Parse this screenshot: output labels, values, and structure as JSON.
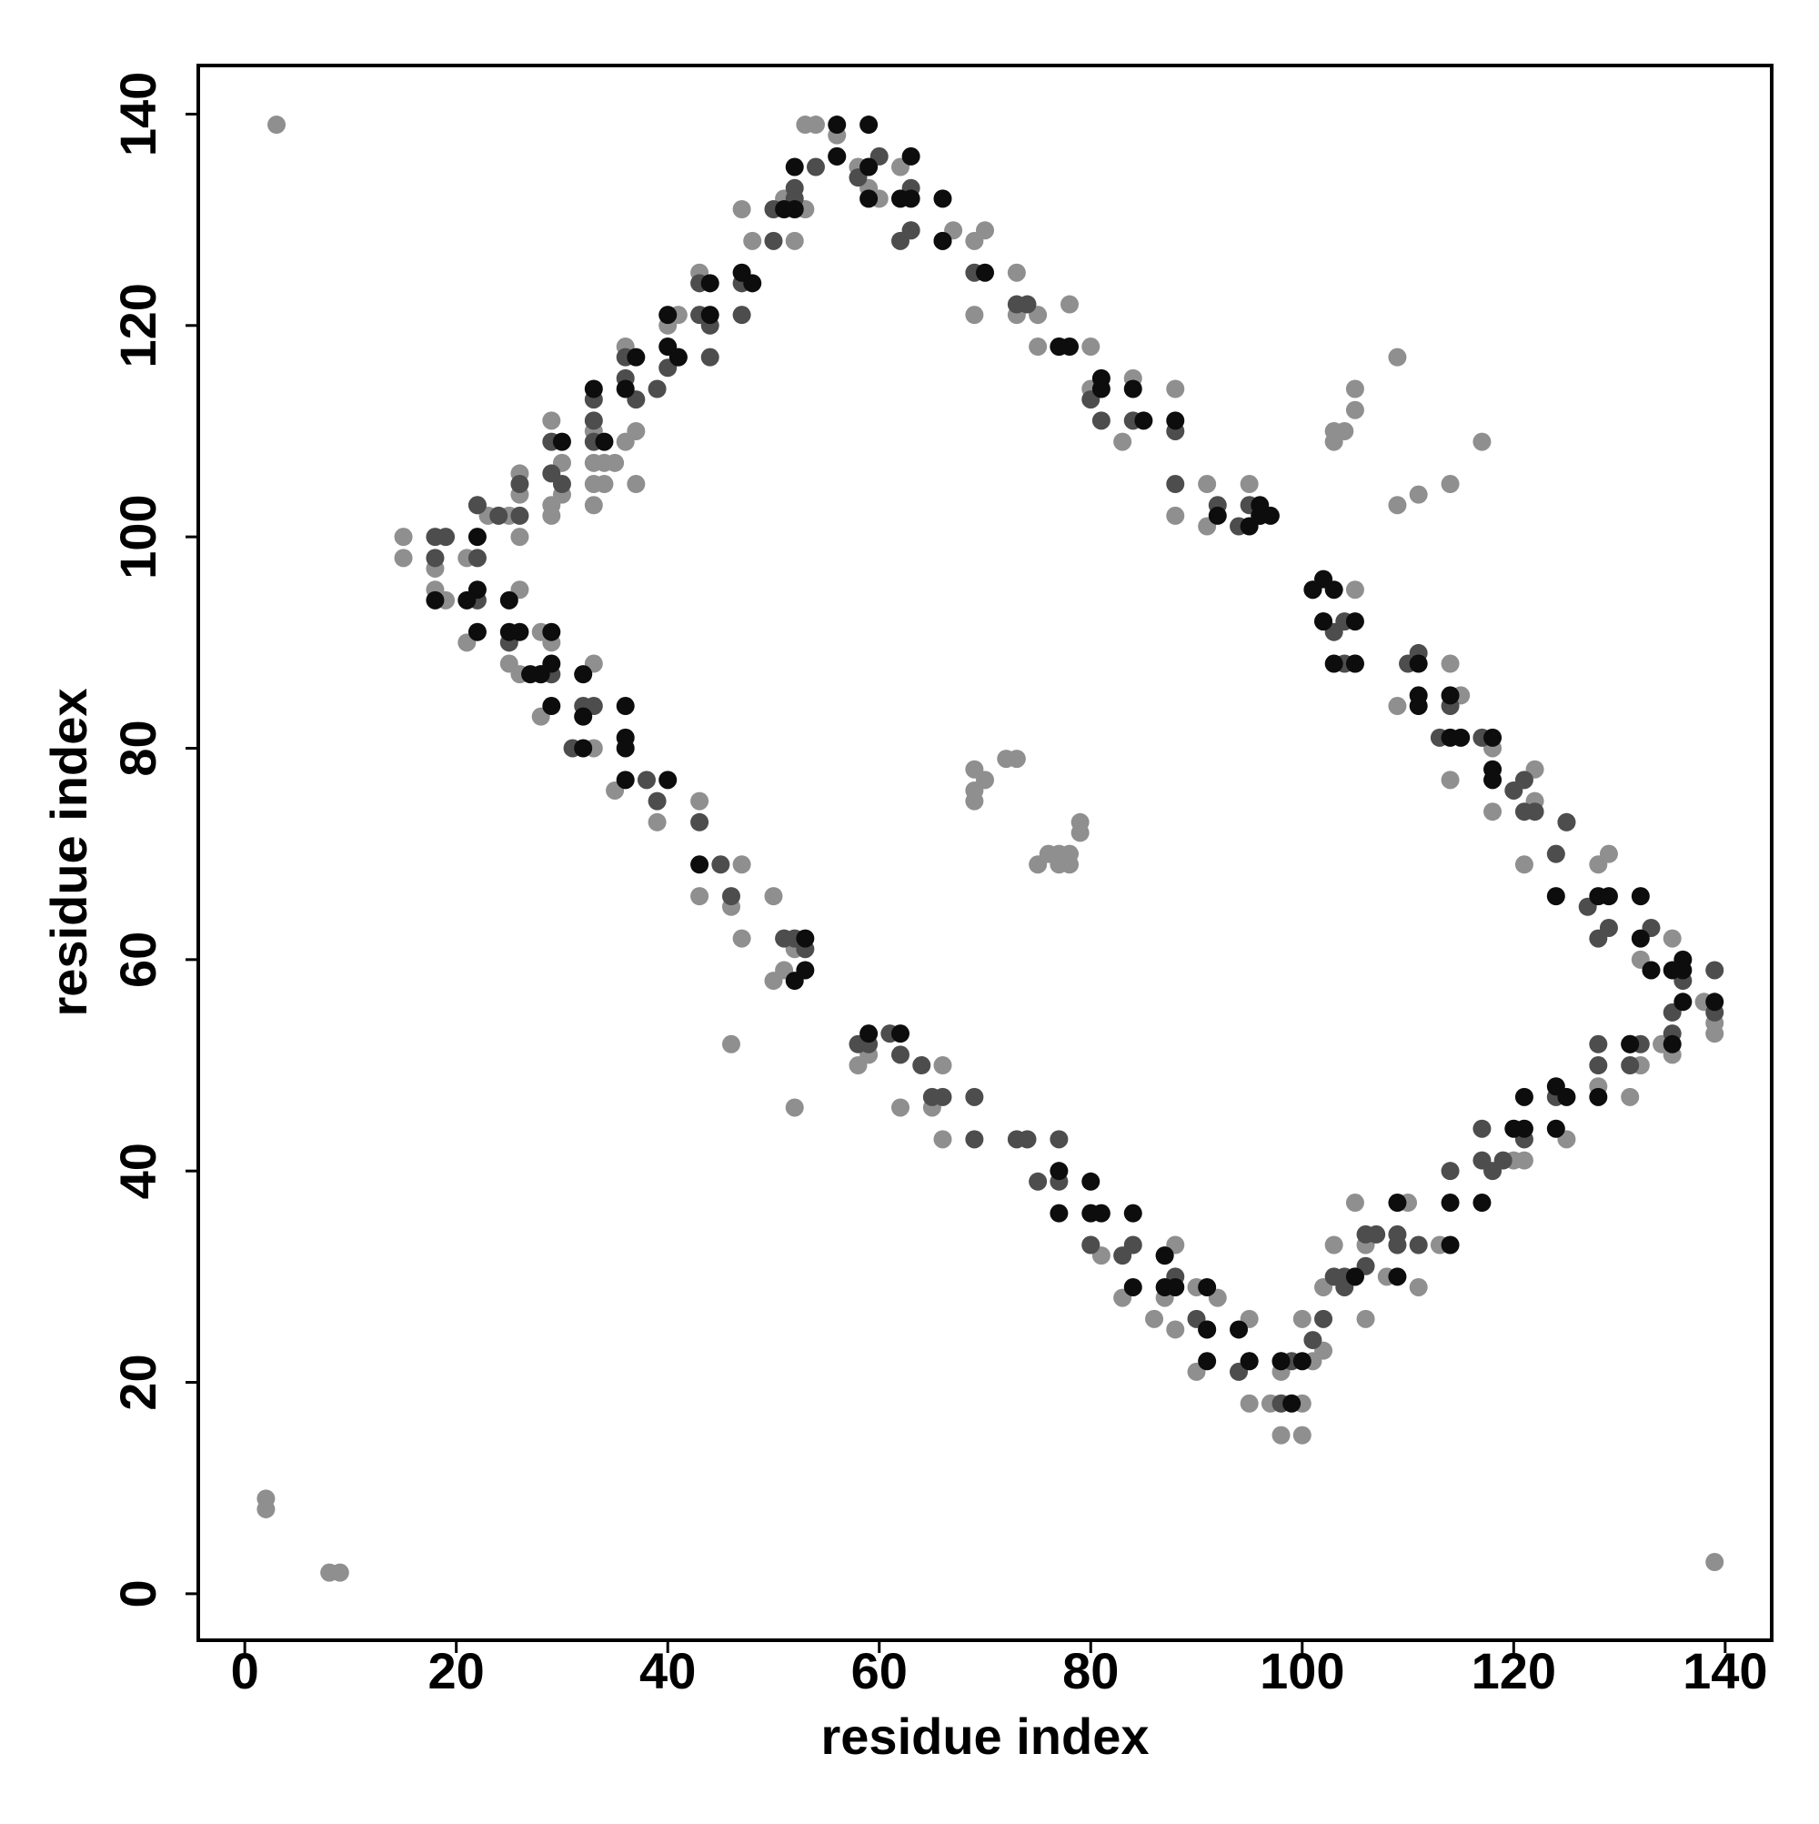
{
  "chart_data": {
    "type": "scatter",
    "xlabel": "residue index",
    "ylabel": "residue index",
    "xlim": [
      -4.4,
      144.4
    ],
    "ylim": [
      -4.4,
      144.6
    ],
    "xticks": [
      0,
      20,
      40,
      60,
      80,
      100,
      120,
      140
    ],
    "yticks": [
      0,
      20,
      40,
      60,
      80,
      100,
      120,
      140
    ],
    "series": [
      {
        "color": "#8f8f8f",
        "x": [
          3,
          2,
          2,
          8,
          9,
          139,
          15,
          15,
          18,
          18,
          19,
          21,
          21,
          22,
          23,
          25,
          26,
          26,
          26,
          26,
          25,
          26,
          28,
          28,
          29,
          29,
          29,
          29,
          30,
          30,
          33,
          33,
          33,
          33,
          33,
          33,
          34,
          34,
          35,
          35,
          36,
          36,
          37,
          37,
          39,
          40,
          41,
          43,
          43,
          43,
          46,
          46,
          47,
          47,
          47,
          48,
          50,
          50,
          51,
          51,
          52,
          52,
          52,
          53,
          53,
          54,
          56,
          58,
          58,
          59,
          59,
          60,
          62,
          62,
          63,
          65,
          66,
          66,
          67,
          69,
          69,
          69,
          69,
          69,
          70,
          70,
          72,
          73,
          73,
          73,
          75,
          75,
          75,
          76,
          77,
          77,
          78,
          78,
          78,
          79,
          79,
          80,
          80,
          80,
          81,
          83,
          83,
          84,
          86,
          87,
          88,
          88,
          88,
          88,
          90,
          90,
          91,
          91,
          92,
          95,
          95,
          95,
          97,
          98,
          98,
          100,
          100,
          100,
          101,
          102,
          102,
          103,
          103,
          103,
          104,
          105,
          105,
          105,
          105,
          106,
          106,
          108,
          109,
          109,
          109,
          110,
          111,
          111,
          113,
          114,
          114,
          114,
          115,
          117,
          118,
          118,
          120,
          121,
          121,
          122,
          122,
          125,
          125,
          128,
          128,
          129,
          131,
          132,
          132,
          133,
          134,
          135,
          135,
          138,
          139,
          139
        ],
        "y": [
          139,
          9,
          8,
          2,
          2,
          3,
          100,
          98,
          97,
          95,
          94,
          98,
          90,
          103,
          102,
          102,
          106,
          104,
          100,
          95,
          88,
          87,
          91,
          83,
          90,
          111,
          103,
          102,
          107,
          104,
          110,
          107,
          105,
          103,
          88,
          80,
          107,
          105,
          107,
          76,
          118,
          109,
          110,
          105,
          73,
          120,
          121,
          125,
          75,
          66,
          65,
          52,
          131,
          69,
          62,
          128,
          66,
          58,
          132,
          59,
          128,
          46,
          61,
          131,
          139,
          139,
          138,
          50,
          135,
          133,
          51,
          132,
          135,
          46,
          129,
          46,
          43,
          50,
          129,
          128,
          121,
          78,
          76,
          75,
          77,
          129,
          79,
          79,
          125,
          121,
          121,
          118,
          69,
          70,
          69,
          70,
          69,
          70,
          122,
          72,
          73,
          118,
          33,
          114,
          32,
          28,
          109,
          115,
          26,
          28,
          25,
          33,
          114,
          102,
          21,
          29,
          101,
          105,
          28,
          26,
          105,
          18,
          18,
          21,
          15,
          26,
          15,
          18,
          22,
          23,
          29,
          33,
          109,
          110,
          110,
          114,
          112,
          37,
          95,
          26,
          33,
          30,
          117,
          103,
          84,
          37,
          29,
          104,
          33,
          105,
          88,
          77,
          85,
          109,
          80,
          74,
          41,
          41,
          69,
          78,
          75,
          43,
          73,
          48,
          69,
          70,
          47,
          50,
          60,
          59,
          52,
          51,
          62,
          56,
          53,
          54
        ]
      },
      {
        "color": "#4d4d4d",
        "x": [
          18,
          19,
          18,
          22,
          22,
          24,
          25,
          26,
          26,
          29,
          29,
          30,
          33,
          33,
          33,
          36,
          36,
          37,
          39,
          40,
          41,
          43,
          43,
          44,
          44,
          47,
          47,
          50,
          50,
          52,
          52,
          54,
          56,
          58,
          60,
          63,
          62,
          63,
          66,
          69,
          73,
          74,
          77,
          80,
          81,
          84,
          88,
          88,
          92,
          94,
          95,
          96,
          101,
          102,
          103,
          104,
          105,
          104,
          110,
          111,
          113,
          114,
          117,
          120,
          121,
          121,
          122,
          124,
          125,
          127,
          128,
          129,
          131,
          131,
          132,
          133,
          135,
          135,
          136,
          139,
          139,
          38,
          39,
          43,
          45,
          46,
          51,
          52,
          53,
          58,
          59,
          61,
          62,
          64,
          65,
          66,
          69,
          69,
          73,
          74,
          75,
          77,
          77,
          80,
          83,
          84,
          87,
          88,
          90,
          91,
          94,
          95,
          98,
          98,
          99,
          101,
          102,
          103,
          104,
          104,
          105,
          106,
          106,
          107,
          109,
          109,
          111,
          114,
          117,
          117,
          118,
          119,
          121,
          124,
          128,
          128,
          32,
          33,
          31,
          28,
          22,
          29
        ],
        "y": [
          100,
          100,
          98,
          103,
          98,
          102,
          90,
          102,
          105,
          109,
          106,
          105,
          111,
          109,
          113,
          117,
          115,
          113,
          114,
          116,
          117,
          121,
          124,
          117,
          120,
          124,
          121,
          131,
          128,
          133,
          132,
          135,
          136,
          134,
          136,
          133,
          128,
          129,
          128,
          125,
          122,
          122,
          118,
          113,
          111,
          111,
          105,
          110,
          103,
          101,
          103,
          102,
          95,
          92,
          91,
          92,
          88,
          88,
          88,
          89,
          81,
          84,
          81,
          76,
          77,
          74,
          74,
          70,
          73,
          65,
          62,
          63,
          52,
          50,
          52,
          63,
          55,
          53,
          58,
          59,
          55,
          77,
          75,
          73,
          69,
          66,
          62,
          62,
          61,
          52,
          52,
          53,
          51,
          50,
          47,
          47,
          47,
          43,
          43,
          43,
          39,
          43,
          39,
          33,
          32,
          33,
          32,
          30,
          26,
          25,
          21,
          22,
          18,
          22,
          22,
          24,
          26,
          30,
          30,
          29,
          30,
          31,
          34,
          34,
          34,
          33,
          33,
          40,
          44,
          41,
          40,
          41,
          43,
          47,
          52,
          50,
          84,
          84,
          80,
          87,
          94,
          87
        ]
      },
      {
        "color": "#0d0d0d",
        "x": [
          18,
          21,
          22,
          22,
          22,
          25,
          25,
          26,
          27,
          29,
          29,
          28,
          29,
          30,
          32,
          32,
          32,
          33,
          34,
          36,
          36,
          36,
          36,
          36,
          37,
          40,
          40,
          40,
          41,
          43,
          44,
          44,
          47,
          48,
          51,
          52,
          52,
          53,
          53,
          52,
          56,
          56,
          59,
          59,
          59,
          59,
          62,
          62,
          63,
          63,
          66,
          66,
          70,
          77,
          78,
          77,
          77,
          80,
          80,
          81,
          81,
          81,
          84,
          84,
          84,
          85,
          87,
          87,
          88,
          88,
          91,
          91,
          91,
          92,
          94,
          95,
          95,
          96,
          98,
          99,
          100,
          101,
          102,
          103,
          102,
          105,
          109,
          109,
          111,
          111,
          111,
          114,
          114,
          114,
          114,
          115,
          117,
          118,
          118,
          118,
          120,
          121,
          121,
          124,
          124,
          125,
          124,
          128,
          128,
          129,
          132,
          132,
          133,
          135,
          136,
          136,
          136,
          139,
          131,
          135,
          96,
          97,
          105,
          105,
          103
        ],
        "y": [
          94,
          94,
          95,
          100,
          91,
          94,
          91,
          91,
          87,
          91,
          88,
          87,
          84,
          109,
          87,
          83,
          80,
          114,
          109,
          114,
          84,
          81,
          80,
          77,
          117,
          121,
          118,
          77,
          117,
          69,
          124,
          121,
          125,
          124,
          131,
          135,
          131,
          62,
          59,
          58,
          139,
          136,
          139,
          135,
          132,
          53,
          132,
          53,
          136,
          132,
          132,
          128,
          125,
          118,
          118,
          40,
          36,
          39,
          36,
          36,
          115,
          114,
          114,
          36,
          29,
          111,
          32,
          29,
          29,
          111,
          29,
          25,
          22,
          102,
          25,
          22,
          101,
          103,
          22,
          18,
          22,
          95,
          96,
          95,
          92,
          30,
          37,
          30,
          88,
          85,
          84,
          37,
          33,
          81,
          85,
          81,
          37,
          81,
          78,
          77,
          44,
          44,
          47,
          48,
          44,
          47,
          66,
          66,
          47,
          66,
          66,
          62,
          59,
          59,
          56,
          60,
          59,
          56,
          52,
          52,
          102,
          102,
          88,
          92,
          88
        ]
      }
    ]
  }
}
